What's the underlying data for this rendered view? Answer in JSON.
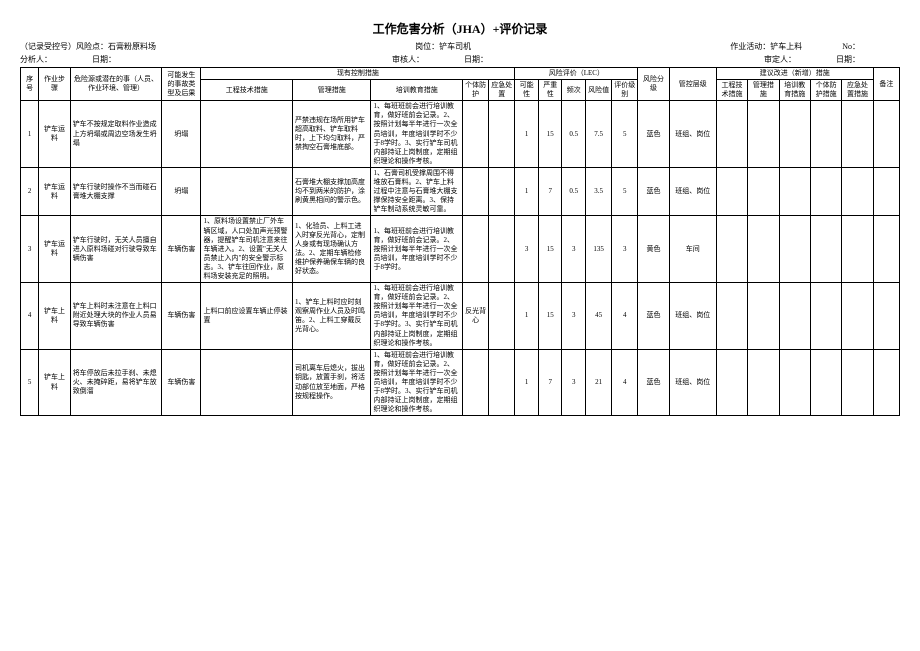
{
  "title": "工作危害分析（JHA）+评价记录",
  "meta": {
    "recordLabel": "（记录受控号）风险点：",
    "recordValue": "石膏粉原料场",
    "postLabel": "岗位：",
    "postValue": "铲车司机",
    "activityLabel": "作业活动：",
    "activityValue": "铲车上料",
    "noLabel": "No：",
    "analystLabel": "分析人：",
    "dateLabel": "日期：",
    "reviewerLabel": "审核人：",
    "approverLabel": "审定人："
  },
  "headers": {
    "seq": "序号",
    "step": "作业步骤",
    "hazard": "危险源或潜在的事（人员、作业环境、管理）",
    "consequence": "可能发生的事故类型及后果",
    "existing": "现有控制措施",
    "tech": "工程技术措施",
    "mgmt": "管理措施",
    "train": "培训教育措施",
    "ppe": "个体防护",
    "emer": "应急处置",
    "lec": "风险评价（LEC）",
    "l": "可能性",
    "e": "严重性",
    "c": "频次",
    "d": "风险值",
    "lvl": "评价级别",
    "risk": "风险分级",
    "ctrl": "管控层级",
    "suggest": "建议改进（新增）措施",
    "s1": "工程技术措施",
    "s2": "管理措施",
    "s3": "培训教育措施",
    "s4": "个体防护措施",
    "s5": "应急处置措施",
    "note": "备注"
  },
  "rows": [
    {
      "seq": "1",
      "step": "铲车运料",
      "hazard": "铲车不按规定取料作业造成上方坍塌或周边空场发生坍塌",
      "consequence": "坍塌",
      "tech": "",
      "mgmt": "严禁违规在场所用铲车超高取料、铲车取料时，上下均匀取料，严禁掏空石膏堆底部。",
      "train": "1、每班班前会进行培训教育，做好班前会记录。2、按照计划每半年进行一次全员培训，年度培训学时不少于8学时。3、实行铲车司机内部持证上岗制度，定期组织理论和操作考核。",
      "ppe": "",
      "emer": "",
      "l": "1",
      "e": "15",
      "c": "0.5",
      "d": "7.5",
      "lvl": "5",
      "risk": "蓝色",
      "ctrl": "班组、岗位"
    },
    {
      "seq": "2",
      "step": "铲车运料",
      "hazard": "铲车行驶时操作不当而碰石膏堆大棚支撑",
      "consequence": "坍塌",
      "tech": "",
      "mgmt": "石膏堆大棚支撑加高度均不到两米的防护，涂刷黄黑相间的警示色。",
      "train": "1、石膏司机受撑周围不得堆放石膏料。2、铲车上料过程中注意与石膏堆大棚支撑保持安全距离。3、保持铲车制动系统灵敏可靠。",
      "ppe": "",
      "emer": "",
      "l": "1",
      "e": "7",
      "c": "0.5",
      "d": "3.5",
      "lvl": "5",
      "risk": "蓝色",
      "ctrl": "班组、岗位"
    },
    {
      "seq": "3",
      "step": "铲车运料",
      "hazard": "铲车行驶时，无关人员擅自进入原料场碰对行驶导致车辆伤害",
      "consequence": "车辆伤害",
      "tech": "1、原料场设置禁止厂外车辆区域，人口处加声光预警器，提醒铲车司机注意来往车辆进入。2、设置\"无关人员禁止入内\"的安全警示标志。3、铲车往回作业，原料场安装充足的照明。",
      "mgmt": "1、化验员、上料工进入时穿反光背心，定制人身或有现场确认方法。2、定期车辆检修维护保养确保车辆的良好状态。",
      "train": "1、每班班前会进行培训教育，做好班前会记录。2、按照计划每半年进行一次全员培训，年度培训学时不少于8学时。",
      "ppe": "",
      "emer": "",
      "l": "3",
      "e": "15",
      "c": "3",
      "d": "135",
      "lvl": "3",
      "risk": "黄色",
      "ctrl": "车间"
    },
    {
      "seq": "4",
      "step": "铲车上料",
      "hazard": "铲车上料时未注意在上料口附近处理大块的作业人员易导致车辆伤害",
      "consequence": "车辆伤害",
      "tech": "上料口前应设置车辆止停装置",
      "mgmt": "1、铲车上料时应时刻观察周作业人员及时鸣笛。2、上料工穿戴反光背心。",
      "train": "1、每班班前会进行培训教育，做好班前会记录。2、按照计划每半年进行一次全员培训，年度培训学时不少于8学时。3、实行铲车司机内部持证上岗制度，定期组织理论和操作考核。",
      "ppe": "反光背心",
      "emer": "",
      "l": "1",
      "e": "15",
      "c": "3",
      "d": "45",
      "lvl": "4",
      "risk": "蓝色",
      "ctrl": "班组、岗位"
    },
    {
      "seq": "5",
      "step": "铲车上料",
      "hazard": "将车停放后未拉手刹、未熄火、未掩碎距，易将铲车放致倒溜",
      "consequence": "车辆伤害",
      "tech": "",
      "mgmt": "司机离车后熄火，拔出钥匙，放置手刹，将活动部位放至地面，严格按规程操作。",
      "train": "1、每班班前会进行培训教育，做好班前会记录。2、按照计划每半年进行一次全员培训，年度培训学时不少于8学时。3、实行铲车司机内部持证上岗制度，定期组织理论和操作考核。",
      "ppe": "",
      "emer": "",
      "l": "1",
      "e": "7",
      "c": "3",
      "d": "21",
      "lvl": "4",
      "risk": "蓝色",
      "ctrl": "班组、岗位"
    }
  ]
}
